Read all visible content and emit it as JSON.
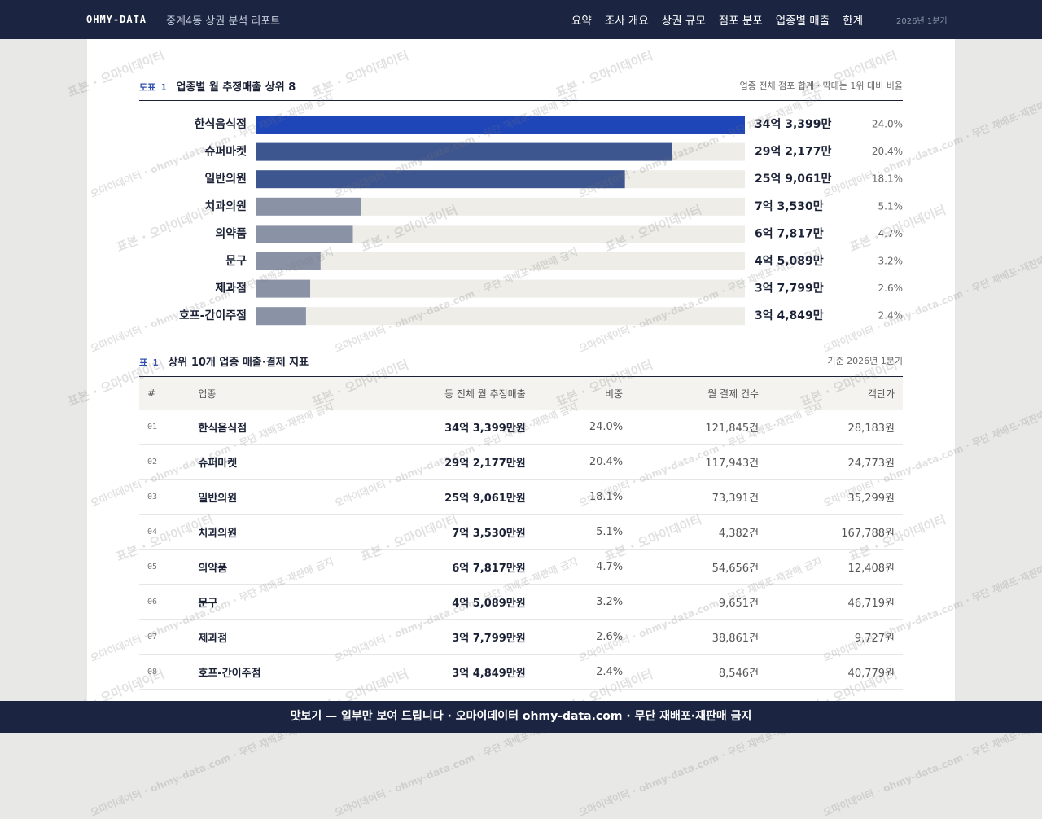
{
  "header": {
    "brand": "OHMY-DATA",
    "report_title": "중계4동 상권 분석 리포트",
    "nav": [
      "요약",
      "조사 개요",
      "상권 규모",
      "점포 분포",
      "업종별 매출",
      "한계"
    ],
    "period": "2026년 1분기"
  },
  "chart_data": {
    "type": "bar",
    "orientation": "horizontal",
    "label": "도표 1",
    "title": "업종별 월 추정매출 상위 8",
    "subtitle": "업종 전체 점포 합계 · 막대는 1위 대비 비율",
    "categories": [
      "한식음식점",
      "슈퍼마켓",
      "일반의원",
      "치과의원",
      "의약품",
      "문구",
      "제과점",
      "호프-간이주점"
    ],
    "values": [
      343399,
      292177,
      259061,
      73530,
      67817,
      45089,
      37799,
      34849
    ],
    "value_labels": [
      "34억 3,399만",
      "29억 2,177만",
      "25억 9,061만",
      "7억 3,530만",
      "6억 7,817만",
      "4억 5,089만",
      "3억 7,799만",
      "3억 4,849만"
    ],
    "shares": [
      24.0,
      20.4,
      18.1,
      5.1,
      4.7,
      3.2,
      2.6,
      2.4
    ],
    "share_labels": [
      "24.0%",
      "20.4%",
      "18.1%",
      "5.1%",
      "4.7%",
      "3.2%",
      "2.6%",
      "2.4%"
    ],
    "colors": [
      "#1f46b8",
      "#3e5690",
      "#3e5690",
      "#8a92a6",
      "#8a92a6",
      "#8a92a6",
      "#8a92a6",
      "#8a92a6"
    ],
    "track_color": "#eeede8"
  },
  "table": {
    "label": "표 1",
    "title": "상위 10개 업종 매출·결제 지표",
    "note": "기준 2026년 1분기",
    "columns": [
      "#",
      "업종",
      "동 전체 월 추정매출",
      "비중",
      "월 결제 건수",
      "객단가"
    ],
    "rows": [
      [
        "01",
        "한식음식점",
        "34억 3,399만원",
        "24.0%",
        "121,845건",
        "28,183원"
      ],
      [
        "02",
        "슈퍼마켓",
        "29억 2,177만원",
        "20.4%",
        "117,943건",
        "24,773원"
      ],
      [
        "03",
        "일반의원",
        "25억 9,061만원",
        "18.1%",
        "73,391건",
        "35,299원"
      ],
      [
        "04",
        "치과의원",
        "7억 3,530만원",
        "5.1%",
        "4,382건",
        "167,788원"
      ],
      [
        "05",
        "의약품",
        "6억 7,817만원",
        "4.7%",
        "54,656건",
        "12,408원"
      ],
      [
        "06",
        "문구",
        "4억 5,089만원",
        "3.2%",
        "9,651건",
        "46,719원"
      ],
      [
        "07",
        "제과점",
        "3억 7,799만원",
        "2.6%",
        "38,861건",
        "9,727원"
      ],
      [
        "08",
        "호프-간이주점",
        "3억 4,849만원",
        "2.4%",
        "8,546건",
        "40,779원"
      ]
    ]
  },
  "watermarks": [
    "표본 · 오마이데이터",
    "오마이데이터 · ohmy-data.com · 무단 재배포·재판매 금지"
  ],
  "footer": "맛보기 — 일부만 보여 드립니다 · 오마이데이터 ohmy-data.com · 무단 재배포·재판매 금지"
}
